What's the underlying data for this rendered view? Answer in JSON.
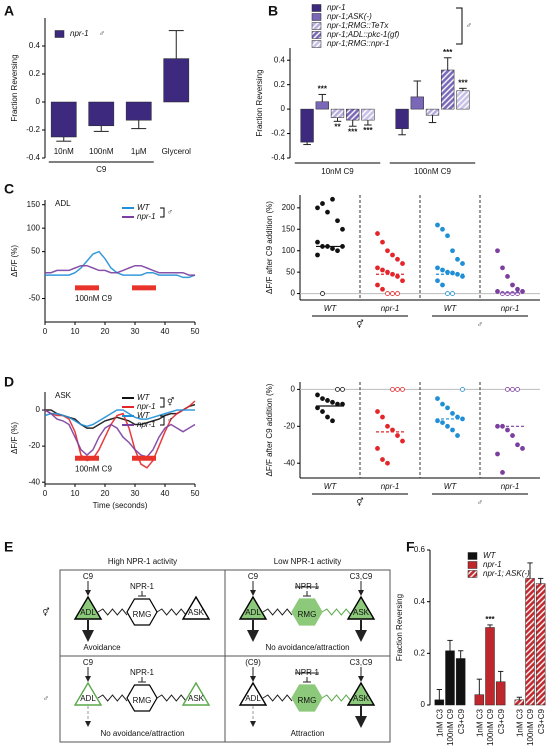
{
  "chart_data": [
    {
      "type": "bar",
      "panel": "A",
      "ylabel": "Fraction Reversing",
      "categories": [
        "10nM",
        "100nM",
        "1μM",
        "Glycerol"
      ],
      "group_label": "C9",
      "sex": "♂",
      "series": [
        {
          "name": "npr-1",
          "color": "#3d2a7f",
          "values": [
            -0.25,
            -0.17,
            -0.13,
            0.31
          ],
          "errors": [
            0.03,
            0.04,
            0.06,
            0.2
          ]
        }
      ],
      "ylim": [
        -0.4,
        0.6
      ],
      "yticks": [
        -0.4,
        -0.2,
        0,
        0.2,
        0.4
      ]
    },
    {
      "type": "bar",
      "panel": "B",
      "ylabel": "Fraction Reversing",
      "categories": [
        "10nM C9",
        "100nM C9"
      ],
      "sex": "♂",
      "series": [
        {
          "name": "npr-1",
          "color": "#3d2a7f",
          "values": [
            -0.27,
            -0.16
          ],
          "errors": [
            0.02,
            0.05
          ]
        },
        {
          "name": "npr-1;ASK(-)",
          "color": "#7a67b8",
          "values": [
            0.06,
            0.1
          ],
          "errors": [
            0.06,
            0.13
          ],
          "significance": [
            "***",
            null
          ]
        },
        {
          "name": "npr-1;RMG::TeTx",
          "color": "#b8acdc",
          "hatch": true,
          "values": [
            -0.07,
            -0.05
          ],
          "errors": [
            0.03,
            0.06
          ],
          "significance": [
            "**",
            null
          ]
        },
        {
          "name": "npr-1;ADL::pkc-1(gf)",
          "color": "#7a67b8",
          "hatch": true,
          "values": [
            -0.09,
            0.32
          ],
          "errors": [
            0.05,
            0.1
          ],
          "significance": [
            "***",
            "***"
          ]
        },
        {
          "name": "npr-1;RMG::npr-1",
          "color": "#c8bfe6",
          "hatch": true,
          "values": [
            -0.09,
            0.15
          ],
          "errors": [
            0.04,
            0.02
          ],
          "significance": [
            "***",
            "***"
          ]
        }
      ],
      "ylim": [
        -0.4,
        0.5
      ],
      "yticks": [
        -0.4,
        -0.2,
        0,
        0.2,
        0.4
      ]
    },
    {
      "type": "line",
      "panel": "C",
      "title": "ADL",
      "ylabel": "ΔF/F (%)",
      "x": [
        0,
        2,
        4,
        6,
        8,
        10,
        12,
        14,
        16,
        18,
        20,
        22,
        24,
        26,
        28,
        30,
        32,
        34,
        36,
        38,
        40,
        42,
        44,
        46,
        48,
        50
      ],
      "xlim": [
        0,
        50
      ],
      "xticks": [
        0,
        10,
        20,
        30,
        40,
        50
      ],
      "ylim": [
        -100,
        160
      ],
      "yticks": [
        -50,
        50,
        100,
        150
      ],
      "series": [
        {
          "name": "WT",
          "color": "#1f8fd6",
          "values": [
            0,
            0,
            0,
            0,
            0,
            5,
            15,
            30,
            45,
            50,
            35,
            15,
            5,
            0,
            0,
            0,
            0,
            5,
            5,
            0,
            0,
            0,
            0,
            -5,
            -5,
            0
          ]
        },
        {
          "name": "npr-1",
          "color": "#7b3fa0",
          "values": [
            5,
            5,
            10,
            10,
            10,
            15,
            20,
            20,
            15,
            10,
            10,
            5,
            5,
            10,
            15,
            20,
            20,
            15,
            10,
            5,
            5,
            5,
            5,
            5,
            0,
            0
          ]
        }
      ],
      "legend_groups": [
        "♂"
      ],
      "stimulus": [
        [
          10,
          18
        ],
        [
          29,
          37
        ]
      ],
      "stimulus_color": "#e8332a",
      "stimulus_label": "100nM C9"
    },
    {
      "type": "strip",
      "ylabel": "ΔF/F after C9 addition (%)",
      "categories": [
        "WT",
        "npr-1",
        "WT",
        "npr-1"
      ],
      "sex_labels": [
        "⚥",
        "♂"
      ],
      "series": [
        {
          "color": "#111111",
          "values": [
            200,
            210,
            190,
            220,
            170,
            150,
            120,
            110,
            110,
            105,
            100,
            110,
            90,
            0
          ],
          "median": 110
        },
        {
          "color": "#e4262a",
          "values": [
            140,
            120,
            100,
            90,
            80,
            70,
            60,
            55,
            50,
            45,
            40,
            30,
            20,
            10,
            0,
            0,
            0
          ],
          "median": 45
        },
        {
          "color": "#1f8fd6",
          "values": [
            160,
            150,
            135,
            100,
            80,
            70,
            60,
            55,
            50,
            48,
            45,
            40,
            30,
            20,
            0,
            0
          ],
          "median": 45
        },
        {
          "color": "#7b3fa0",
          "values": [
            100,
            60,
            40,
            20,
            10,
            5,
            5,
            0,
            0,
            0,
            0
          ],
          "median": 2
        }
      ],
      "ylim": [
        -15,
        230
      ],
      "yticks": [
        0,
        50,
        100,
        150,
        200
      ]
    },
    {
      "type": "line",
      "panel": "D",
      "title": "ASK",
      "ylabel": "ΔF/F (%)",
      "xlabel": "Time (seconds)",
      "x": [
        0,
        2,
        4,
        6,
        8,
        10,
        12,
        14,
        16,
        18,
        20,
        22,
        24,
        26,
        28,
        30,
        32,
        34,
        36,
        38,
        40,
        42,
        44,
        46,
        48,
        50
      ],
      "xlim": [
        0,
        50
      ],
      "xticks": [
        0,
        10,
        20,
        30,
        40,
        50
      ],
      "ylim": [
        -41,
        10
      ],
      "yticks": [
        -40,
        -20,
        0
      ],
      "series": [
        {
          "name": "WT",
          "color": "#111111",
          "values": [
            0,
            0,
            -2,
            -3,
            -4,
            -5,
            -8,
            -10,
            -10,
            -8,
            -6,
            -5,
            -4,
            -5,
            -6,
            -8,
            -8,
            -7,
            -6,
            -5,
            -3,
            -2,
            -2,
            0,
            2,
            3
          ]
        },
        {
          "name": "npr-1",
          "color": "#e4262a",
          "values": [
            0,
            -2,
            -3,
            -3,
            -5,
            -12,
            -25,
            -28,
            -27,
            -22,
            -15,
            -8,
            -3,
            -2,
            -10,
            -22,
            -30,
            -32,
            -28,
            -20,
            -12,
            -5,
            -2,
            0,
            2,
            5
          ]
        },
        {
          "name": "WT",
          "color": "#1f8fd6",
          "values": [
            -3,
            -2,
            -2,
            -3,
            -4,
            -6,
            -8,
            -9,
            -8,
            -6,
            -4,
            -2,
            0,
            0,
            -2,
            -4,
            -5,
            -5,
            -4,
            -3,
            -2,
            -1,
            0,
            0,
            0,
            0
          ]
        },
        {
          "name": "npr-1",
          "color": "#7b3fa0",
          "values": [
            0,
            -2,
            -5,
            -6,
            -8,
            -15,
            -22,
            -25,
            -22,
            -15,
            -10,
            -8,
            -10,
            -15,
            -18,
            -22,
            -25,
            -26,
            -22,
            -15,
            -10,
            -8,
            -10,
            -12,
            -10,
            -8
          ]
        }
      ],
      "legend_groups": [
        "⚥",
        "♂"
      ],
      "stimulus": [
        [
          10,
          18
        ],
        [
          29,
          37
        ]
      ],
      "stimulus_color": "#e8332a",
      "stimulus_label": "100nM C9"
    },
    {
      "type": "strip",
      "ylabel": "ΔF/F after C9 addition (%)",
      "categories": [
        "WT",
        "npr-1",
        "WT",
        "npr-1"
      ],
      "sex_labels": [
        "⚥",
        "♂"
      ],
      "series": [
        {
          "color": "#111111",
          "values": [
            -3,
            -5,
            -6,
            -7,
            -8,
            -8,
            -10,
            -12,
            -15,
            -17,
            0,
            0
          ],
          "median": -9
        },
        {
          "color": "#e4262a",
          "values": [
            -12,
            -15,
            -20,
            -22,
            -25,
            -28,
            -32,
            -38,
            -40,
            0,
            0,
            0
          ],
          "median": -23
        },
        {
          "color": "#1f8fd6",
          "values": [
            -5,
            -8,
            -10,
            -13,
            -15,
            -16,
            -17,
            -18,
            -20,
            -22,
            -25,
            0
          ],
          "median": -16
        },
        {
          "color": "#7b3fa0",
          "values": [
            -20,
            -20,
            -22,
            -25,
            -30,
            -32,
            -35,
            -45,
            0,
            0,
            0
          ],
          "median": -20
        }
      ],
      "ylim": [
        -48,
        4
      ],
      "yticks": [
        -40,
        -20,
        0
      ]
    },
    {
      "type": "bar",
      "panel": "F",
      "ylabel": "Fraction Reversing",
      "cluster": "series",
      "categories": [
        "1nM C3",
        "100nM C9",
        "C3+C9"
      ],
      "series": [
        {
          "name": "WT",
          "color": "#111111",
          "values": [
            0.02,
            0.21,
            0.18
          ],
          "errors": [
            0.04,
            0.04,
            0.03
          ]
        },
        {
          "name": "npr-1",
          "color": "#c0272d",
          "values": [
            0.04,
            0.3,
            0.09
          ],
          "errors": [
            0.06,
            0.01,
            0.04
          ],
          "significance": [
            null,
            "***",
            null
          ]
        },
        {
          "name": "npr-1; ASK(-)",
          "color": "#c0272d",
          "hatch": true,
          "values": [
            0.02,
            0.49,
            0.47
          ],
          "errors": [
            0.01,
            0.06,
            0.02
          ]
        }
      ],
      "ylim": [
        0,
        0.6
      ],
      "yticks": [
        0,
        0.2,
        0.4,
        0.6
      ]
    }
  ],
  "diagram": {
    "panel": "E",
    "columns": [
      "High NPR-1 activity",
      "Low NPR-1 activity"
    ],
    "rows": [
      "⚥",
      "♂"
    ],
    "cells": [
      {
        "inputs": [
          "C9"
        ],
        "npr": {
          "label": "NPR-1",
          "struck": false
        },
        "nodes": [
          {
            "label": "ADL",
            "fill": "#8cc97a",
            "stroke": "#000000"
          },
          {
            "label": "RMG",
            "fill": "#ffffff",
            "stroke": "#000000"
          },
          {
            "label": "ASK",
            "fill": "#ffffff",
            "stroke": "#000000"
          }
        ],
        "outcome": "Avoidance"
      },
      {
        "inputs": [
          "C9",
          "C3,C9"
        ],
        "npr": {
          "label": "NPR-1",
          "struck": true
        },
        "nodes": [
          {
            "label": "ADL",
            "fill": "#8cc97a",
            "stroke": "#000000"
          },
          {
            "label": "RMG",
            "fill": "#8cc97a",
            "stroke": "#8cc97a"
          },
          {
            "label": "ASK",
            "fill": "#8cc97a",
            "stroke": "#000000"
          }
        ],
        "outcome": "No avoidance/attraction"
      },
      {
        "inputs": [
          "C9"
        ],
        "npr": {
          "label": "NPR-1",
          "struck": false
        },
        "nodes": [
          {
            "label": "ADL",
            "fill": "#ffffff",
            "stroke": "#5aa84a"
          },
          {
            "label": "RMG",
            "fill": "#ffffff",
            "stroke": "#000000"
          },
          {
            "label": "ASK",
            "fill": "#ffffff",
            "stroke": "#5aa84a"
          }
        ],
        "outcome": "No avoidance/attraction"
      },
      {
        "inputs": [
          "(C9)",
          "C3,C9"
        ],
        "npr": {
          "label": "NPR-1",
          "struck": true
        },
        "nodes": [
          {
            "label": "ADL",
            "fill": "#ffffff",
            "stroke": "#000000"
          },
          {
            "label": "RMG",
            "fill": "#8cc97a",
            "stroke": "#8cc97a"
          },
          {
            "label": "ASK",
            "fill": "#8cc97a",
            "stroke": "#000000"
          }
        ],
        "outcome": "Attraction"
      }
    ]
  }
}
